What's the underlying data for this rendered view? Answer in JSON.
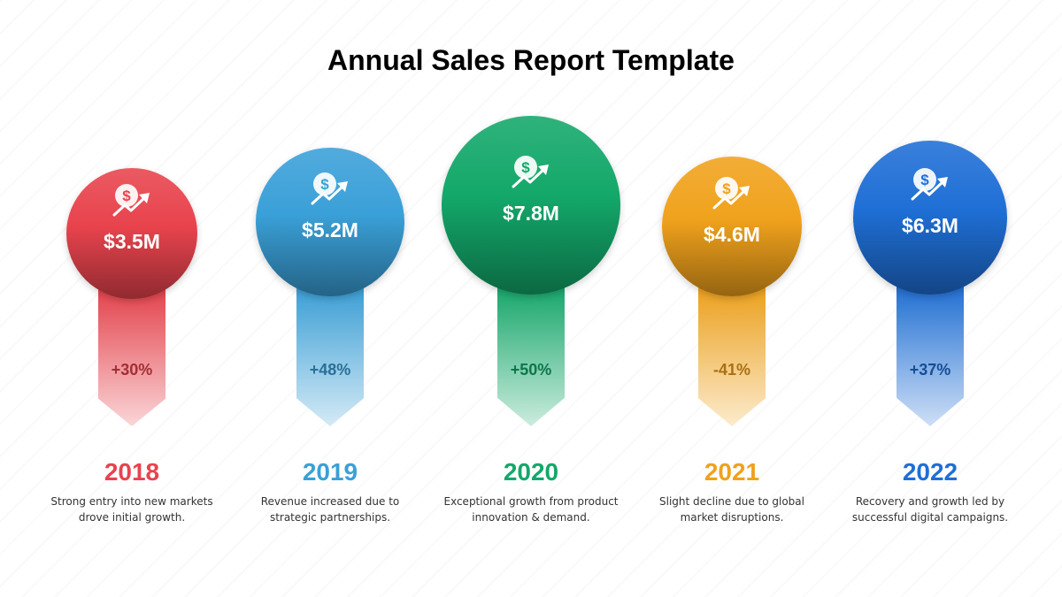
{
  "title": "Annual Sales Report Template",
  "milestones": [
    {
      "year": "2018",
      "amount": "$3.5M",
      "change": "+30%",
      "description": "Strong entry into new markets drove initial growth.",
      "color": "#e8434d",
      "icon": "dollar-growth-icon"
    },
    {
      "year": "2019",
      "amount": "$5.2M",
      "change": "+48%",
      "description": "Revenue increased due to strategic partnerships.",
      "color": "#3aa0d8",
      "icon": "dollar-growth-icon"
    },
    {
      "year": "2020",
      "amount": "$7.8M",
      "change": "+50%",
      "description": "Exceptional growth from product innovation & demand.",
      "color": "#13a86a",
      "icon": "dollar-growth-icon"
    },
    {
      "year": "2021",
      "amount": "$4.6M",
      "change": "-41%",
      "description": "Slight decline due to global market disruptions.",
      "color": "#f0a21c",
      "icon": "dollar-growth-icon"
    },
    {
      "year": "2022",
      "amount": "$6.3M",
      "change": "+37%",
      "description": "Recovery and growth led by successful digital campaigns.",
      "color": "#1f6fd6",
      "icon": "dollar-growth-icon"
    }
  ]
}
